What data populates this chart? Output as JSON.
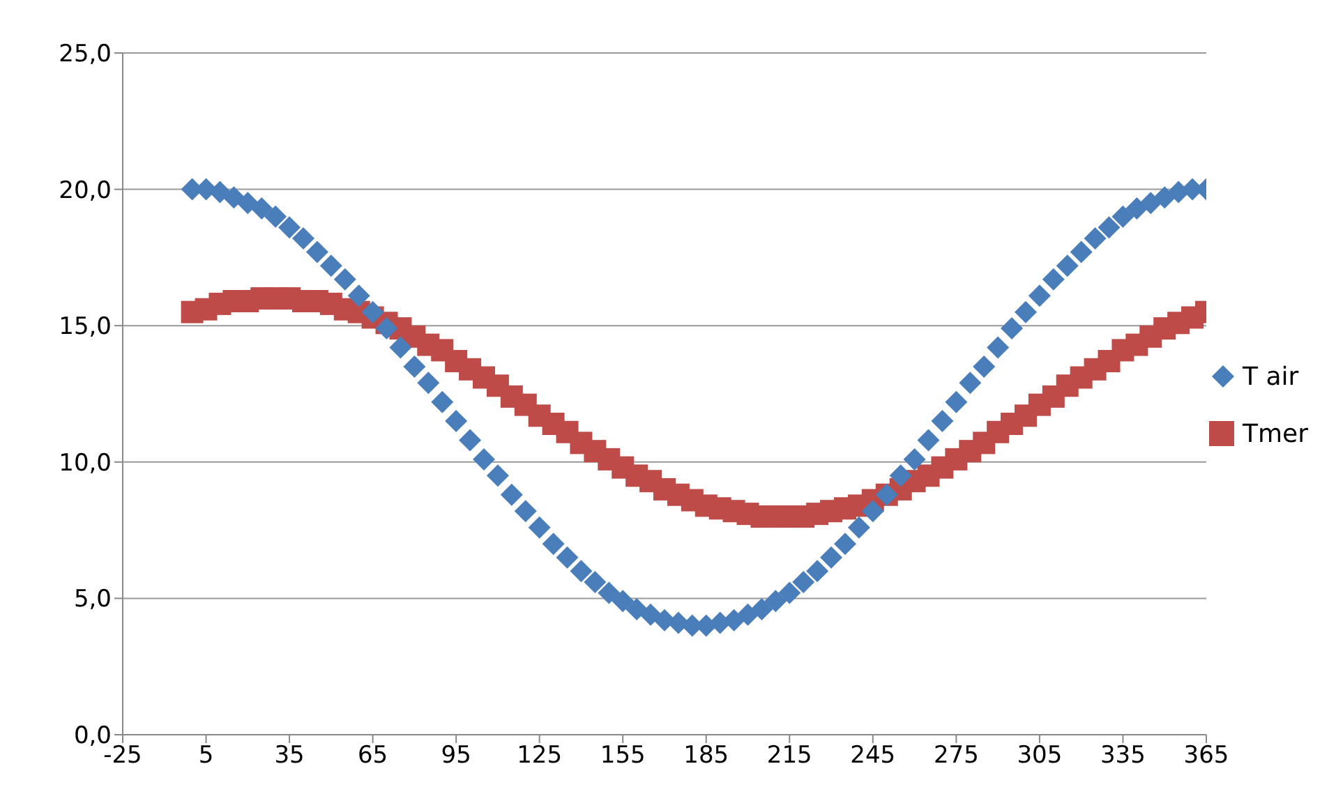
{
  "chart_data": {
    "type": "scatter",
    "x": [
      0,
      5,
      10,
      15,
      20,
      25,
      30,
      35,
      40,
      45,
      50,
      55,
      60,
      65,
      70,
      75,
      80,
      85,
      90,
      95,
      100,
      105,
      110,
      115,
      120,
      125,
      130,
      135,
      140,
      145,
      150,
      155,
      160,
      165,
      170,
      175,
      180,
      185,
      190,
      195,
      200,
      205,
      210,
      215,
      220,
      225,
      230,
      235,
      240,
      245,
      250,
      255,
      260,
      265,
      270,
      275,
      280,
      285,
      290,
      295,
      300,
      305,
      310,
      315,
      320,
      325,
      330,
      335,
      340,
      345,
      350,
      355,
      360,
      365
    ],
    "series": [
      {
        "name": "T air",
        "color": "#4a7ebb",
        "marker": "diamond",
        "values": [
          20.0,
          20.0,
          19.9,
          19.7,
          19.5,
          19.3,
          19.0,
          18.6,
          18.2,
          17.7,
          17.2,
          16.7,
          16.1,
          15.5,
          14.9,
          14.2,
          13.5,
          12.9,
          12.2,
          11.5,
          10.8,
          10.1,
          9.5,
          8.8,
          8.2,
          7.6,
          7.0,
          6.5,
          6.0,
          5.6,
          5.2,
          4.9,
          4.6,
          4.4,
          4.2,
          4.1,
          4.0,
          4.0,
          4.1,
          4.2,
          4.4,
          4.6,
          4.9,
          5.2,
          5.6,
          6.0,
          6.5,
          7.0,
          7.6,
          8.2,
          8.8,
          9.5,
          10.1,
          10.8,
          11.5,
          12.2,
          12.9,
          13.5,
          14.2,
          14.9,
          15.5,
          16.1,
          16.7,
          17.2,
          17.7,
          18.2,
          18.6,
          19.0,
          19.3,
          19.5,
          19.7,
          19.9,
          20.0,
          20.0
        ]
      },
      {
        "name": "Tmer",
        "color": "#be4b48",
        "marker": "square",
        "values": [
          15.5,
          15.6,
          15.8,
          15.9,
          15.9,
          16.0,
          16.0,
          16.0,
          15.9,
          15.9,
          15.8,
          15.6,
          15.5,
          15.3,
          15.1,
          14.9,
          14.6,
          14.3,
          14.1,
          13.7,
          13.4,
          13.1,
          12.8,
          12.4,
          12.1,
          11.7,
          11.4,
          11.1,
          10.7,
          10.4,
          10.1,
          9.8,
          9.5,
          9.3,
          9.0,
          8.8,
          8.6,
          8.4,
          8.3,
          8.2,
          8.1,
          8.0,
          8.0,
          8.0,
          8.0,
          8.1,
          8.2,
          8.3,
          8.4,
          8.6,
          8.8,
          9.0,
          9.3,
          9.5,
          9.8,
          10.1,
          10.4,
          10.7,
          11.1,
          11.4,
          11.7,
          12.1,
          12.4,
          12.8,
          13.1,
          13.4,
          13.7,
          14.1,
          14.3,
          14.6,
          14.9,
          15.1,
          15.3,
          15.5
        ]
      }
    ],
    "xlim": [
      -25,
      365
    ],
    "xticks": [
      -25,
      5,
      35,
      65,
      95,
      125,
      155,
      185,
      215,
      245,
      275,
      305,
      335,
      365
    ],
    "ylim": [
      0,
      25
    ],
    "yticks": [
      {
        "value": 0,
        "label": "0,0"
      },
      {
        "value": 5,
        "label": "5,0"
      },
      {
        "value": 10,
        "label": "10,0"
      },
      {
        "value": 15,
        "label": "15,0"
      },
      {
        "value": 20,
        "label": "20,0"
      },
      {
        "value": 25,
        "label": "25,0"
      }
    ],
    "grid": "y",
    "legend": "right"
  }
}
